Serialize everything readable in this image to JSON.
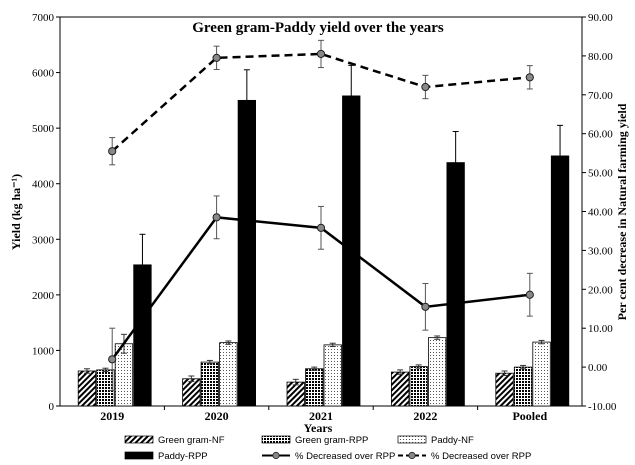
{
  "chart_data": {
    "type": "bar",
    "title": "Green gram-Paddy yield over the years",
    "xlabel": "Years",
    "ylabel": "Yield (kg ha⁻¹)",
    "y2label": "Per cent decrease in Natural farming yield",
    "categories": [
      "2019",
      "2020",
      "2021",
      "2022",
      "Pooled"
    ],
    "ylim": [
      0,
      7000
    ],
    "y2lim": [
      -10,
      90
    ],
    "yticks": [
      "0",
      "1000",
      "2000",
      "3000",
      "4000",
      "5000",
      "6000",
      "7000"
    ],
    "y2ticks": [
      "-10.00",
      "0.00",
      "10.00",
      "20.00",
      "30.00",
      "40.00",
      "50.00",
      "60.00",
      "70.00",
      "80.00",
      "90.00"
    ],
    "grid": false,
    "legend_position": "bottom",
    "bar_series": [
      {
        "name": "Green gram-NF",
        "pattern": "diagonal-stripes",
        "values": [
          630,
          490,
          430,
          610,
          590
        ],
        "errors": [
          40,
          50,
          50,
          40,
          40
        ]
      },
      {
        "name": "Green gram-RPP",
        "pattern": "crosshatch",
        "values": [
          650,
          790,
          670,
          710,
          700
        ],
        "errors": [
          30,
          30,
          30,
          30,
          30
        ]
      },
      {
        "name": "Paddy-NF",
        "pattern": "dotted",
        "values": [
          1120,
          1140,
          1100,
          1230,
          1150
        ],
        "errors": [
          170,
          30,
          30,
          30,
          30
        ]
      },
      {
        "name": "Paddy-RPP",
        "pattern": "solid-black",
        "values": [
          2540,
          5500,
          5580,
          4380,
          4500
        ],
        "errors": [
          550,
          550,
          550,
          560,
          550
        ]
      }
    ],
    "line_series": [
      {
        "name": "% Decreased over RPP",
        "axis": "right",
        "style": "solid",
        "values": [
          2.0,
          38.5,
          35.8,
          15.5,
          18.6
        ],
        "errors": [
          8.0,
          5.5,
          5.5,
          6.0,
          5.5
        ]
      },
      {
        "name": "% Decreased over RPP",
        "axis": "right",
        "style": "dashed",
        "values": [
          55.5,
          79.5,
          80.5,
          72.0,
          74.5
        ],
        "errors": [
          3.5,
          3.0,
          3.5,
          3.0,
          3.0
        ]
      }
    ]
  }
}
